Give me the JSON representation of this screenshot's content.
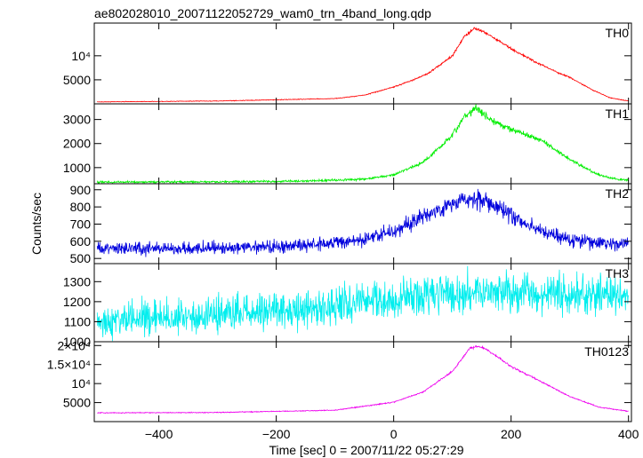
{
  "chart_data": {
    "type": "line",
    "title": "ae802028010_20071122052729_wam0_trn_4band_long.qdp",
    "xlabel": "Time [sec] 0 = 2007/11/22 05:27:29",
    "ylabel": "Counts/sec",
    "xlim": [
      -510,
      405
    ],
    "x_ticks": [
      {
        "value": -400,
        "label": "−400"
      },
      {
        "value": -200,
        "label": "−200"
      },
      {
        "value": 0,
        "label": "0"
      },
      {
        "value": 200,
        "label": "200"
      },
      {
        "value": 400,
        "label": "400"
      }
    ],
    "panels": [
      {
        "name": "TH0",
        "color": "#ff0000",
        "ylim": [
          0,
          16800
        ],
        "noise": 0.012,
        "noise_abs": 40,
        "yticks": [
          {
            "value": 5000,
            "label": "5000"
          },
          {
            "value": 10000,
            "label": "10⁴"
          }
        ],
        "profile": [
          [
            -505,
            400
          ],
          [
            -300,
            600
          ],
          [
            -100,
            1100
          ],
          [
            -50,
            1800
          ],
          [
            0,
            3500
          ],
          [
            40,
            5300
          ],
          [
            60,
            6400
          ],
          [
            100,
            10000
          ],
          [
            120,
            14000
          ],
          [
            140,
            15800
          ],
          [
            160,
            14500
          ],
          [
            200,
            11500
          ],
          [
            240,
            8800
          ],
          [
            280,
            6500
          ],
          [
            300,
            5500
          ],
          [
            340,
            2800
          ],
          [
            370,
            1200
          ],
          [
            400,
            600
          ]
        ]
      },
      {
        "name": "TH1",
        "color": "#00ee00",
        "ylim": [
          330,
          3650
        ],
        "noise": 0.025,
        "noise_abs": 20,
        "yticks": [
          {
            "value": 1000,
            "label": "1000"
          },
          {
            "value": 2000,
            "label": "2000"
          },
          {
            "value": 3000,
            "label": "3000"
          }
        ],
        "profile": [
          [
            -505,
            400
          ],
          [
            -300,
            410
          ],
          [
            -150,
            440
          ],
          [
            -50,
            520
          ],
          [
            0,
            700
          ],
          [
            50,
            1200
          ],
          [
            100,
            2350
          ],
          [
            120,
            3100
          ],
          [
            140,
            3500
          ],
          [
            165,
            3000
          ],
          [
            200,
            2600
          ],
          [
            250,
            2150
          ],
          [
            300,
            1350
          ],
          [
            340,
            800
          ],
          [
            370,
            550
          ],
          [
            400,
            470
          ]
        ]
      },
      {
        "name": "TH2",
        "color": "#0000dd",
        "ylim": [
          470,
          935
        ],
        "noise": 0.045,
        "noise_abs": 0,
        "yticks": [
          {
            "value": 500,
            "label": "500"
          },
          {
            "value": 600,
            "label": "600"
          },
          {
            "value": 700,
            "label": "700"
          },
          {
            "value": 800,
            "label": "800"
          },
          {
            "value": 900,
            "label": "900"
          }
        ],
        "profile": [
          [
            -505,
            555
          ],
          [
            -300,
            560
          ],
          [
            -150,
            575
          ],
          [
            -50,
            610
          ],
          [
            0,
            660
          ],
          [
            60,
            760
          ],
          [
            120,
            840
          ],
          [
            150,
            845
          ],
          [
            190,
            770
          ],
          [
            250,
            660
          ],
          [
            300,
            610
          ],
          [
            350,
            590
          ],
          [
            400,
            580
          ]
        ]
      },
      {
        "name": "TH3",
        "color": "#00eeee",
        "ylim": [
          1000,
          1390
        ],
        "noise": 0.055,
        "noise_abs": 0,
        "yticks": [
          {
            "value": 1000,
            "label": "1000"
          },
          {
            "value": 1100,
            "label": "1100"
          },
          {
            "value": 1200,
            "label": "1200"
          },
          {
            "value": 1300,
            "label": "1300"
          }
        ],
        "profile": [
          [
            -505,
            1100
          ],
          [
            -300,
            1130
          ],
          [
            -100,
            1180
          ],
          [
            0,
            1210
          ],
          [
            100,
            1240
          ],
          [
            150,
            1250
          ],
          [
            250,
            1240
          ],
          [
            400,
            1230
          ]
        ]
      },
      {
        "name": "TH0123",
        "color": "#ee00ee",
        "ylim": [
          0,
          21000
        ],
        "noise": 0.008,
        "noise_abs": 60,
        "yticks": [
          {
            "value": 5000,
            "label": "5000"
          },
          {
            "value": 10000,
            "label": "10⁴"
          },
          {
            "value": 15000,
            "label": "1.5×10⁴"
          },
          {
            "value": 20000,
            "label": "2×10⁴"
          }
        ],
        "profile": [
          [
            -505,
            2300
          ],
          [
            -300,
            2400
          ],
          [
            -100,
            3000
          ],
          [
            0,
            5100
          ],
          [
            50,
            7800
          ],
          [
            100,
            13200
          ],
          [
            130,
            19300
          ],
          [
            145,
            19800
          ],
          [
            160,
            18800
          ],
          [
            200,
            14500
          ],
          [
            250,
            10600
          ],
          [
            300,
            6600
          ],
          [
            350,
            3800
          ],
          [
            400,
            2700
          ]
        ]
      }
    ]
  }
}
